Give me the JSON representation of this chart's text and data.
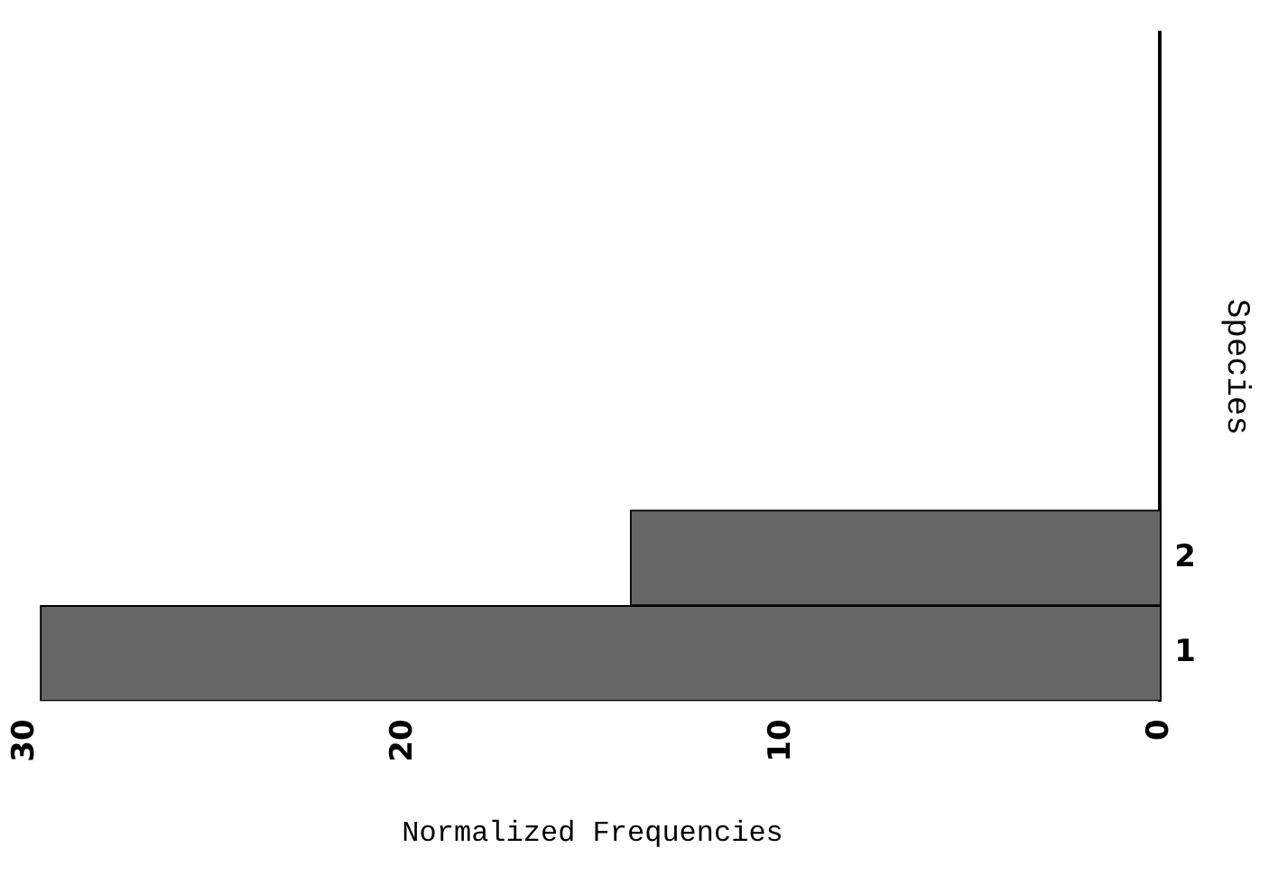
{
  "chart_data": {
    "type": "bar",
    "orientation": "horizontal",
    "xlabel": "Normalized Frequencies",
    "ylabel": "Species",
    "categories": [
      null,
      null,
      null,
      null,
      null,
      "2",
      "1"
    ],
    "values": [
      0,
      0,
      0,
      0,
      0,
      14.0,
      29.6
    ],
    "color": "#666666",
    "xlim": [
      30,
      0
    ],
    "xticks": [
      0,
      10,
      20,
      30
    ],
    "grid": false
  }
}
